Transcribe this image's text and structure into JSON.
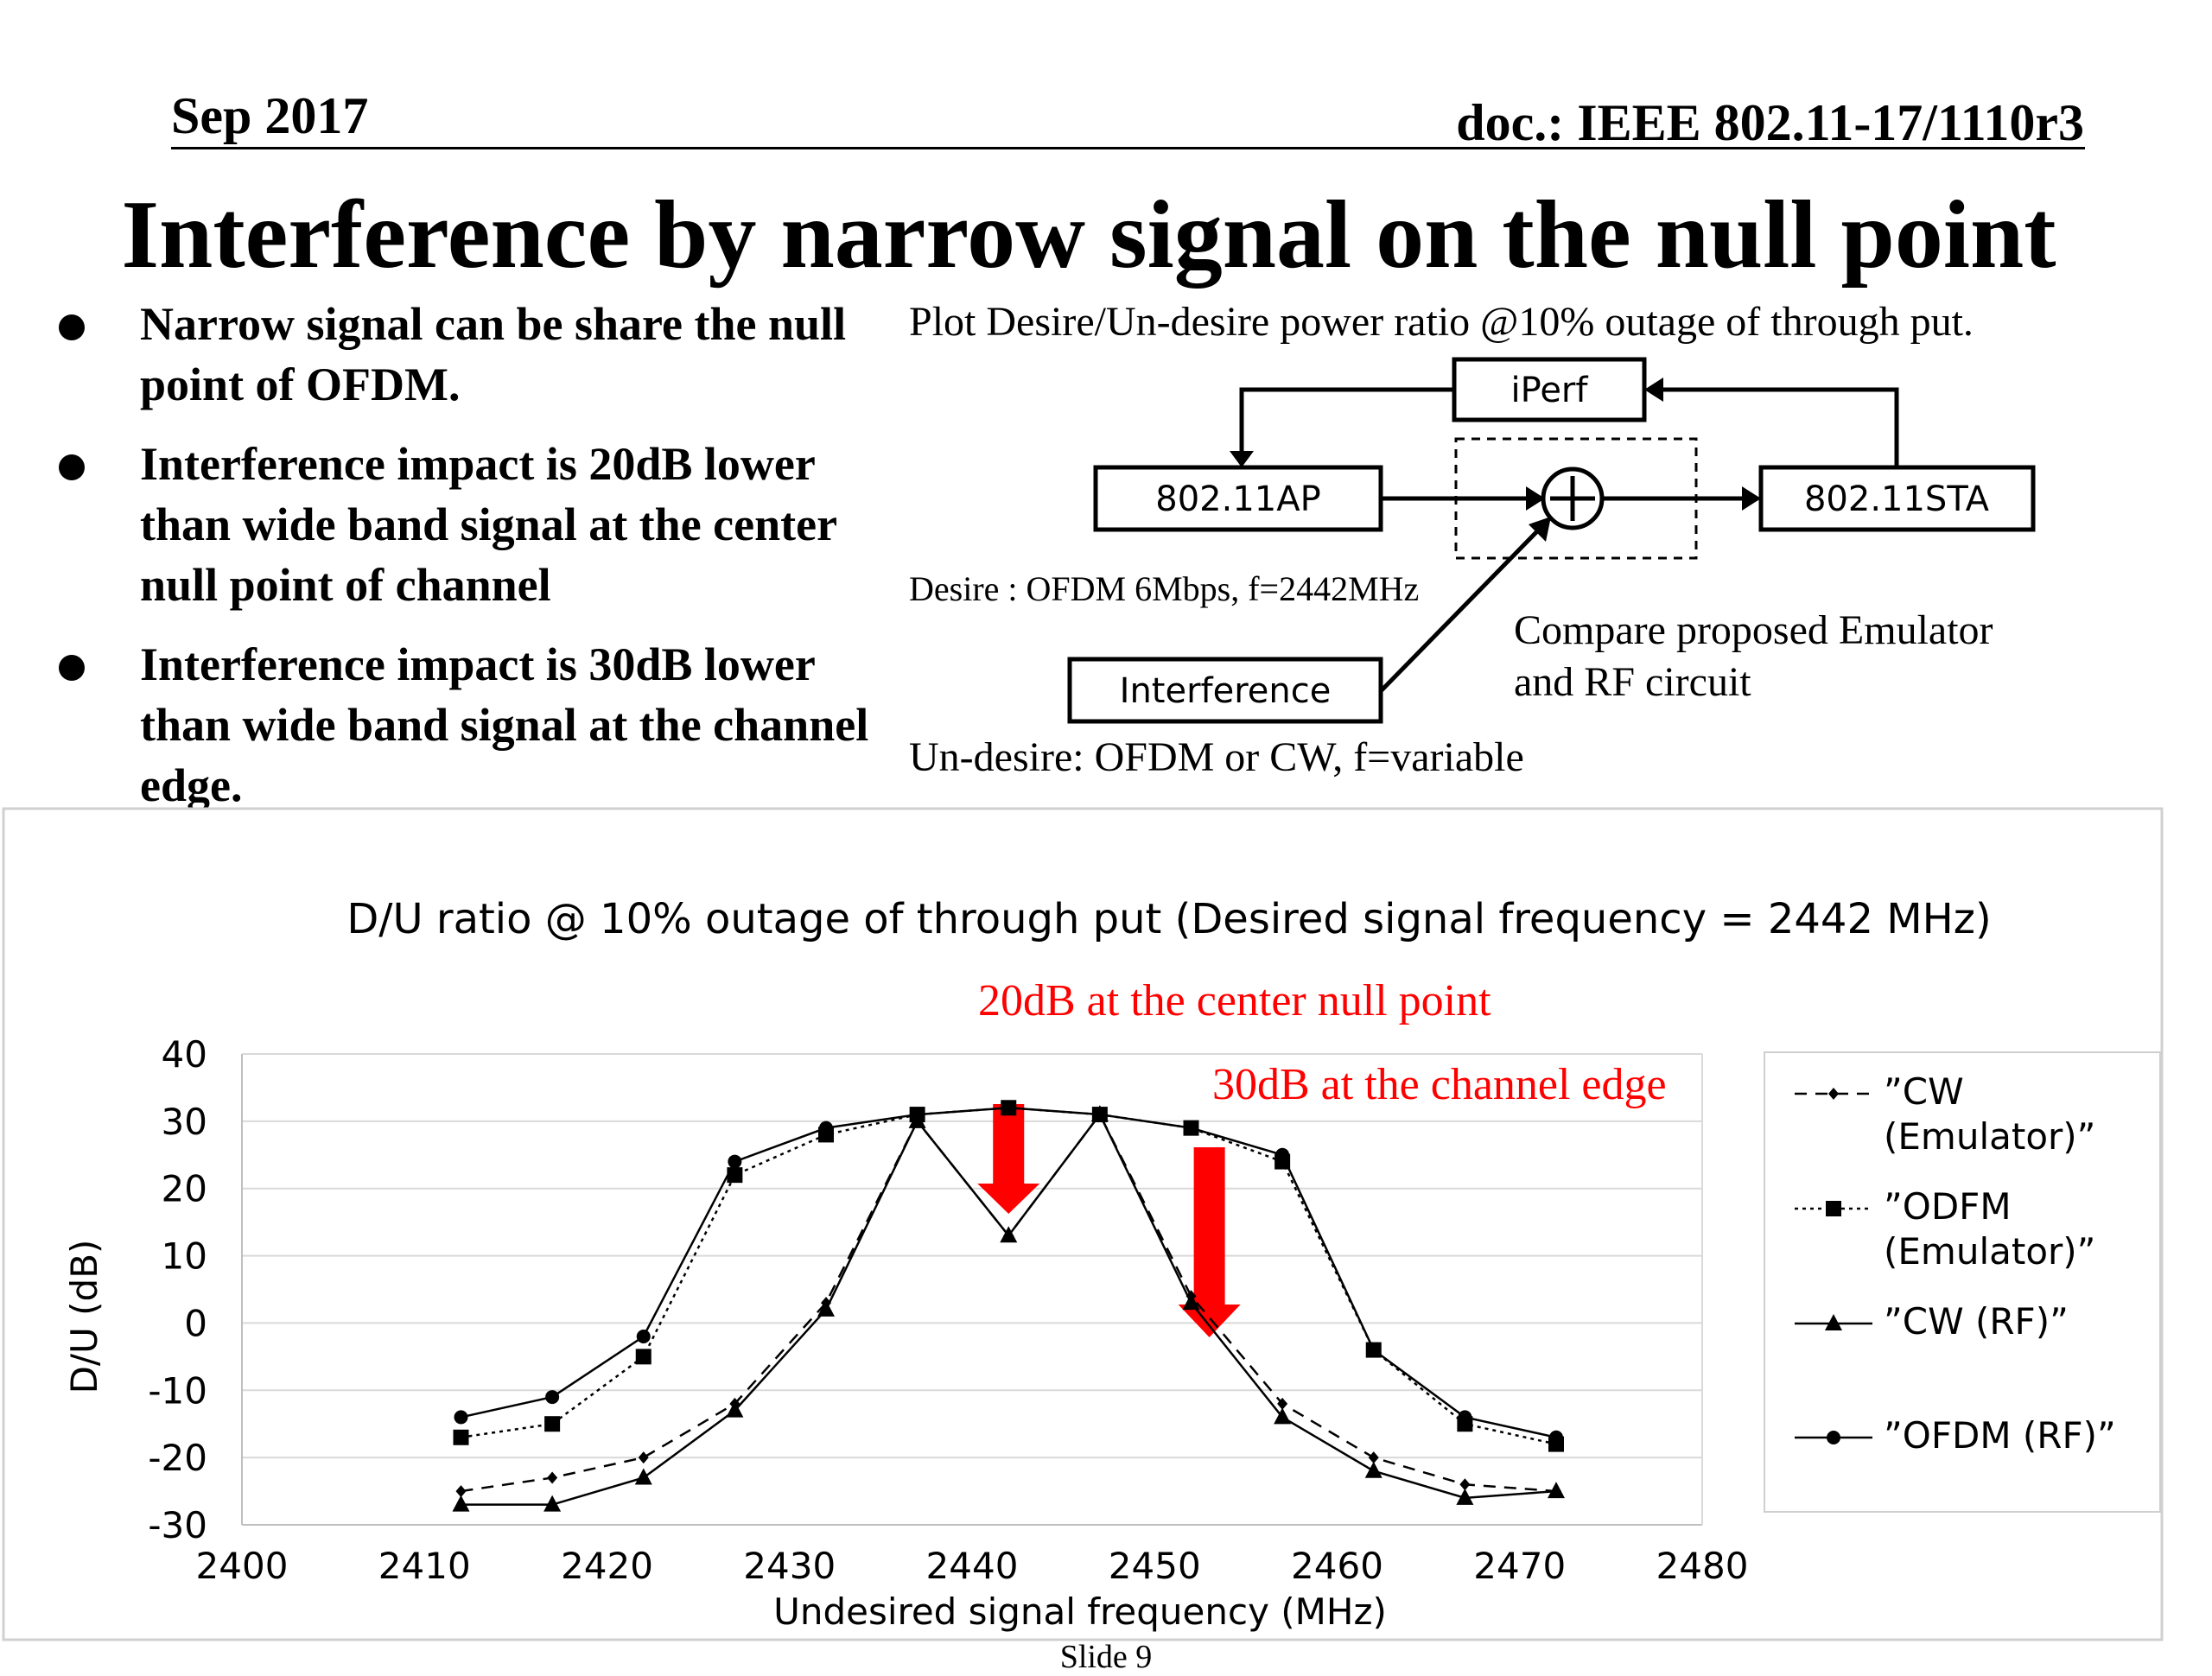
{
  "header": {
    "date": "Sep 2017",
    "doc": "doc.: IEEE 802.11-17/1110r3"
  },
  "title": "Interference by narrow signal on the null point",
  "bullets": [
    "Narrow signal can be share the null point of OFDM.",
    "Interference impact is 20dB lower than wide band signal at the center null point of channel",
    "Interference impact is 30dB lower than wide band signal at the channel edge."
  ],
  "diagram": {
    "caption": "Plot Desire/Un-desire power ratio @10% outage of through put.",
    "boxes": {
      "iperf": "iPerf",
      "ap": "802.11AP",
      "sta": "802.11STA",
      "interference": "Interference"
    },
    "desire_label": "Desire : OFDM 6Mbps, f=2442MHz",
    "undesire_label": "Un-desire: OFDM or CW,  f=variable",
    "compare_line1": "Compare proposed Emulator",
    "compare_line2": "and RF circuit"
  },
  "chart_data": {
    "type": "line",
    "title": "D/U ratio @ 10% outage of through put (Desired signal frequency = 2442 MHz)",
    "xlabel": "Undesired signal frequency (MHz)",
    "ylabel": "D/U (dB)",
    "xlim": [
      2400,
      2480
    ],
    "ylim": [
      -30,
      40
    ],
    "xticks": [
      2400,
      2410,
      2420,
      2430,
      2440,
      2450,
      2460,
      2470,
      2480
    ],
    "yticks": [
      -30,
      -20,
      -10,
      0,
      10,
      20,
      30,
      40
    ],
    "grid": "horizontal",
    "legend_position": "right",
    "x": [
      2412,
      2417,
      2422,
      2427,
      2432,
      2437,
      2442,
      2447,
      2452,
      2457,
      2462,
      2467,
      2472
    ],
    "series": [
      {
        "name": "”CW (Emulator)”",
        "style": "dashed",
        "marker": "diamond",
        "values": [
          -25,
          -23,
          -20,
          -12,
          3,
          30,
          13,
          31,
          4,
          -12,
          -20,
          -24,
          -25
        ]
      },
      {
        "name": "”ODFM (Emulator)”",
        "style": "dotted",
        "marker": "square",
        "values": [
          -17,
          -15,
          -5,
          22,
          28,
          31,
          32,
          31,
          29,
          24,
          -4,
          -15,
          -18
        ]
      },
      {
        "name": "”CW (RF)”",
        "style": "solid",
        "marker": "triangle",
        "values": [
          -27,
          -27,
          -23,
          -13,
          2,
          30,
          13,
          31,
          3,
          -14,
          -22,
          -26,
          -25
        ]
      },
      {
        "name": "”OFDM (RF)”",
        "style": "solid",
        "marker": "circle",
        "values": [
          -14,
          -11,
          -2,
          24,
          29,
          31,
          32,
          31,
          29,
          25,
          -4,
          -14,
          -17
        ]
      }
    ],
    "annotations": [
      {
        "text": "20dB at the center null point",
        "color": "#ff0000"
      },
      {
        "text": "30dB at the channel edge",
        "color": "#ff0000"
      }
    ]
  },
  "footer": "Slide 9"
}
